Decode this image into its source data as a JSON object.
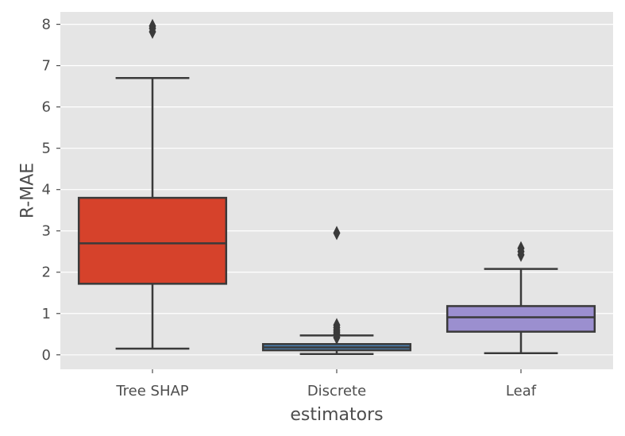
{
  "chart_data": {
    "type": "box",
    "title": "",
    "xlabel": "estimators",
    "ylabel": "R-MAE",
    "categories": [
      "Tree SHAP",
      "Discrete",
      "Leaf"
    ],
    "ylim": [
      -0.35,
      8.3
    ],
    "yticks": [
      0,
      1,
      2,
      3,
      4,
      5,
      6,
      7,
      8
    ],
    "grid": true,
    "boxes": [
      {
        "name": "Tree SHAP",
        "whislo": 0.15,
        "q1": 1.72,
        "med": 2.7,
        "q3": 3.8,
        "whishi": 6.7,
        "fliers": [
          7.82,
          7.9,
          7.96
        ],
        "color": "#d6422b"
      },
      {
        "name": "Discrete",
        "whislo": 0.02,
        "q1": 0.11,
        "med": 0.18,
        "q3": 0.26,
        "whishi": 0.47,
        "fliers": [
          0.42,
          0.5,
          0.55,
          0.6,
          0.66,
          0.72,
          2.95
        ],
        "color": "#4a7fb0"
      },
      {
        "name": "Leaf",
        "whislo": 0.04,
        "q1": 0.56,
        "med": 0.91,
        "q3": 1.18,
        "whishi": 2.08,
        "fliers": [
          2.42,
          2.5,
          2.58
        ],
        "color": "#9b8fcf"
      }
    ],
    "colors": {
      "plot_bg": "#e5e5e5",
      "grid": "#ffffff",
      "line": "#3a3a3a",
      "text": "#4d4d4d"
    }
  }
}
